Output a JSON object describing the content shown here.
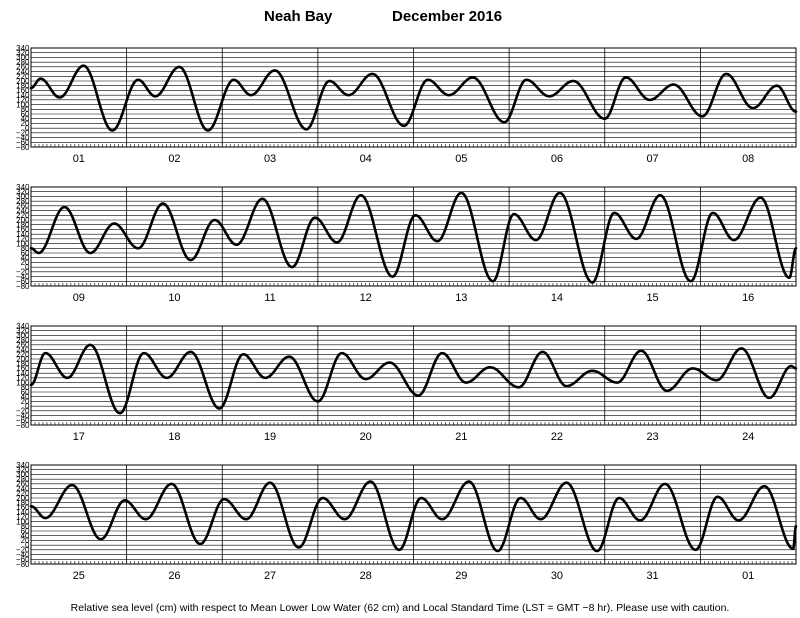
{
  "chart_data": {
    "type": "line",
    "title_station": "Neah Bay",
    "title_month": "December  2016",
    "footer": "Relative sea level (cm) with respect to Mean Lower Low Water (62 cm) and Local Standard Time (LST = GMT −8 hr). Please use with caution.",
    "ylim": [
      -80,
      340
    ],
    "y_ticks": [
      "340",
      "320",
      "300",
      "280",
      "260",
      "240",
      "220",
      "200",
      "180",
      "160",
      "140",
      "120",
      "100",
      "80",
      "60",
      "40",
      "20",
      "0",
      "−20",
      "−40",
      "−60",
      "−80"
    ],
    "grid": true,
    "colors": {
      "line": "#000000",
      "grid": "#000000"
    },
    "panels": [
      {
        "days": [
          "01",
          "02",
          "03",
          "04",
          "05",
          "06",
          "07",
          "08"
        ],
        "series": [
          {
            "x_days": 0.0,
            "y": 170
          },
          {
            "x_days": 0.1,
            "y": 210
          },
          {
            "x_days": 0.3,
            "y": 130
          },
          {
            "x_days": 0.55,
            "y": 265
          },
          {
            "x_days": 0.85,
            "y": -10
          },
          {
            "x_days": 1.12,
            "y": 205
          },
          {
            "x_days": 1.3,
            "y": 135
          },
          {
            "x_days": 1.55,
            "y": 260
          },
          {
            "x_days": 1.85,
            "y": -10
          },
          {
            "x_days": 2.12,
            "y": 205
          },
          {
            "x_days": 2.3,
            "y": 140
          },
          {
            "x_days": 2.55,
            "y": 245
          },
          {
            "x_days": 2.88,
            "y": -5
          },
          {
            "x_days": 3.12,
            "y": 200
          },
          {
            "x_days": 3.32,
            "y": 140
          },
          {
            "x_days": 3.57,
            "y": 230
          },
          {
            "x_days": 3.9,
            "y": 10
          },
          {
            "x_days": 4.15,
            "y": 205
          },
          {
            "x_days": 4.37,
            "y": 140
          },
          {
            "x_days": 4.62,
            "y": 215
          },
          {
            "x_days": 4.95,
            "y": 25
          },
          {
            "x_days": 5.18,
            "y": 205
          },
          {
            "x_days": 5.42,
            "y": 135
          },
          {
            "x_days": 5.67,
            "y": 200
          },
          {
            "x_days": 6.0,
            "y": 40
          },
          {
            "x_days": 6.22,
            "y": 215
          },
          {
            "x_days": 6.47,
            "y": 120
          },
          {
            "x_days": 6.72,
            "y": 185
          },
          {
            "x_days": 7.02,
            "y": 50
          },
          {
            "x_days": 7.27,
            "y": 230
          },
          {
            "x_days": 7.55,
            "y": 85
          },
          {
            "x_days": 7.8,
            "y": 180
          },
          {
            "x_days": 8.0,
            "y": 70
          }
        ]
      },
      {
        "days": [
          "09",
          "10",
          "11",
          "12",
          "13",
          "14",
          "15",
          "16"
        ],
        "series": [
          {
            "x_days": 0.0,
            "y": 80
          },
          {
            "x_days": 0.08,
            "y": 60
          },
          {
            "x_days": 0.35,
            "y": 255
          },
          {
            "x_days": 0.62,
            "y": 60
          },
          {
            "x_days": 0.87,
            "y": 185
          },
          {
            "x_days": 1.12,
            "y": 80
          },
          {
            "x_days": 1.38,
            "y": 270
          },
          {
            "x_days": 1.67,
            "y": 30
          },
          {
            "x_days": 1.92,
            "y": 200
          },
          {
            "x_days": 2.15,
            "y": 95
          },
          {
            "x_days": 2.42,
            "y": 290
          },
          {
            "x_days": 2.73,
            "y": 0
          },
          {
            "x_days": 2.97,
            "y": 210
          },
          {
            "x_days": 3.2,
            "y": 105
          },
          {
            "x_days": 3.45,
            "y": 305
          },
          {
            "x_days": 3.78,
            "y": -40
          },
          {
            "x_days": 4.02,
            "y": 220
          },
          {
            "x_days": 4.25,
            "y": 110
          },
          {
            "x_days": 4.5,
            "y": 315
          },
          {
            "x_days": 4.83,
            "y": -60
          },
          {
            "x_days": 5.05,
            "y": 225
          },
          {
            "x_days": 5.28,
            "y": 115
          },
          {
            "x_days": 5.53,
            "y": 315
          },
          {
            "x_days": 5.87,
            "y": -65
          },
          {
            "x_days": 6.1,
            "y": 230
          },
          {
            "x_days": 6.33,
            "y": 120
          },
          {
            "x_days": 6.58,
            "y": 305
          },
          {
            "x_days": 6.9,
            "y": -60
          },
          {
            "x_days": 7.13,
            "y": 230
          },
          {
            "x_days": 7.35,
            "y": 115
          },
          {
            "x_days": 7.63,
            "y": 295
          },
          {
            "x_days": 7.93,
            "y": -45
          },
          {
            "x_days": 8.0,
            "y": 80
          }
        ]
      },
      {
        "days": [
          "17",
          "18",
          "19",
          "20",
          "21",
          "22",
          "23",
          "24"
        ],
        "series": [
          {
            "x_days": 0.0,
            "y": 90
          },
          {
            "x_days": 0.15,
            "y": 225
          },
          {
            "x_days": 0.38,
            "y": 120
          },
          {
            "x_days": 0.62,
            "y": 260
          },
          {
            "x_days": 0.93,
            "y": -30
          },
          {
            "x_days": 1.18,
            "y": 225
          },
          {
            "x_days": 1.42,
            "y": 120
          },
          {
            "x_days": 1.67,
            "y": 230
          },
          {
            "x_days": 1.97,
            "y": -10
          },
          {
            "x_days": 2.22,
            "y": 220
          },
          {
            "x_days": 2.45,
            "y": 120
          },
          {
            "x_days": 2.7,
            "y": 210
          },
          {
            "x_days": 3.0,
            "y": 20
          },
          {
            "x_days": 3.25,
            "y": 225
          },
          {
            "x_days": 3.5,
            "y": 115
          },
          {
            "x_days": 3.75,
            "y": 185
          },
          {
            "x_days": 4.05,
            "y": 45
          },
          {
            "x_days": 4.3,
            "y": 225
          },
          {
            "x_days": 4.55,
            "y": 100
          },
          {
            "x_days": 4.8,
            "y": 165
          },
          {
            "x_days": 5.1,
            "y": 80
          },
          {
            "x_days": 5.35,
            "y": 230
          },
          {
            "x_days": 5.6,
            "y": 85
          },
          {
            "x_days": 5.87,
            "y": 150
          },
          {
            "x_days": 6.13,
            "y": 100
          },
          {
            "x_days": 6.38,
            "y": 235
          },
          {
            "x_days": 6.65,
            "y": 65
          },
          {
            "x_days": 6.92,
            "y": 160
          },
          {
            "x_days": 7.17,
            "y": 110
          },
          {
            "x_days": 7.43,
            "y": 245
          },
          {
            "x_days": 7.72,
            "y": 35
          },
          {
            "x_days": 7.95,
            "y": 170
          },
          {
            "x_days": 8.0,
            "y": 160
          }
        ]
      },
      {
        "days": [
          "25",
          "26",
          "27",
          "28",
          "29",
          "30",
          "31",
          "01"
        ],
        "series": [
          {
            "x_days": 0.0,
            "y": 165
          },
          {
            "x_days": 0.15,
            "y": 115
          },
          {
            "x_days": 0.43,
            "y": 255
          },
          {
            "x_days": 0.73,
            "y": 25
          },
          {
            "x_days": 0.98,
            "y": 190
          },
          {
            "x_days": 1.2,
            "y": 110
          },
          {
            "x_days": 1.47,
            "y": 260
          },
          {
            "x_days": 1.77,
            "y": 5
          },
          {
            "x_days": 2.02,
            "y": 195
          },
          {
            "x_days": 2.25,
            "y": 110
          },
          {
            "x_days": 2.5,
            "y": 265
          },
          {
            "x_days": 2.8,
            "y": -10
          },
          {
            "x_days": 3.05,
            "y": 200
          },
          {
            "x_days": 3.28,
            "y": 110
          },
          {
            "x_days": 3.55,
            "y": 270
          },
          {
            "x_days": 3.85,
            "y": -20
          },
          {
            "x_days": 4.08,
            "y": 200
          },
          {
            "x_days": 4.3,
            "y": 110
          },
          {
            "x_days": 4.58,
            "y": 270
          },
          {
            "x_days": 4.88,
            "y": -25
          },
          {
            "x_days": 5.12,
            "y": 200
          },
          {
            "x_days": 5.33,
            "y": 110
          },
          {
            "x_days": 5.6,
            "y": 265
          },
          {
            "x_days": 5.92,
            "y": -25
          },
          {
            "x_days": 6.15,
            "y": 200
          },
          {
            "x_days": 6.37,
            "y": 105
          },
          {
            "x_days": 6.63,
            "y": 260
          },
          {
            "x_days": 6.95,
            "y": -20
          },
          {
            "x_days": 7.18,
            "y": 205
          },
          {
            "x_days": 7.4,
            "y": 105
          },
          {
            "x_days": 7.67,
            "y": 250
          },
          {
            "x_days": 7.97,
            "y": -15
          },
          {
            "x_days": 8.0,
            "y": 80
          }
        ]
      }
    ]
  }
}
